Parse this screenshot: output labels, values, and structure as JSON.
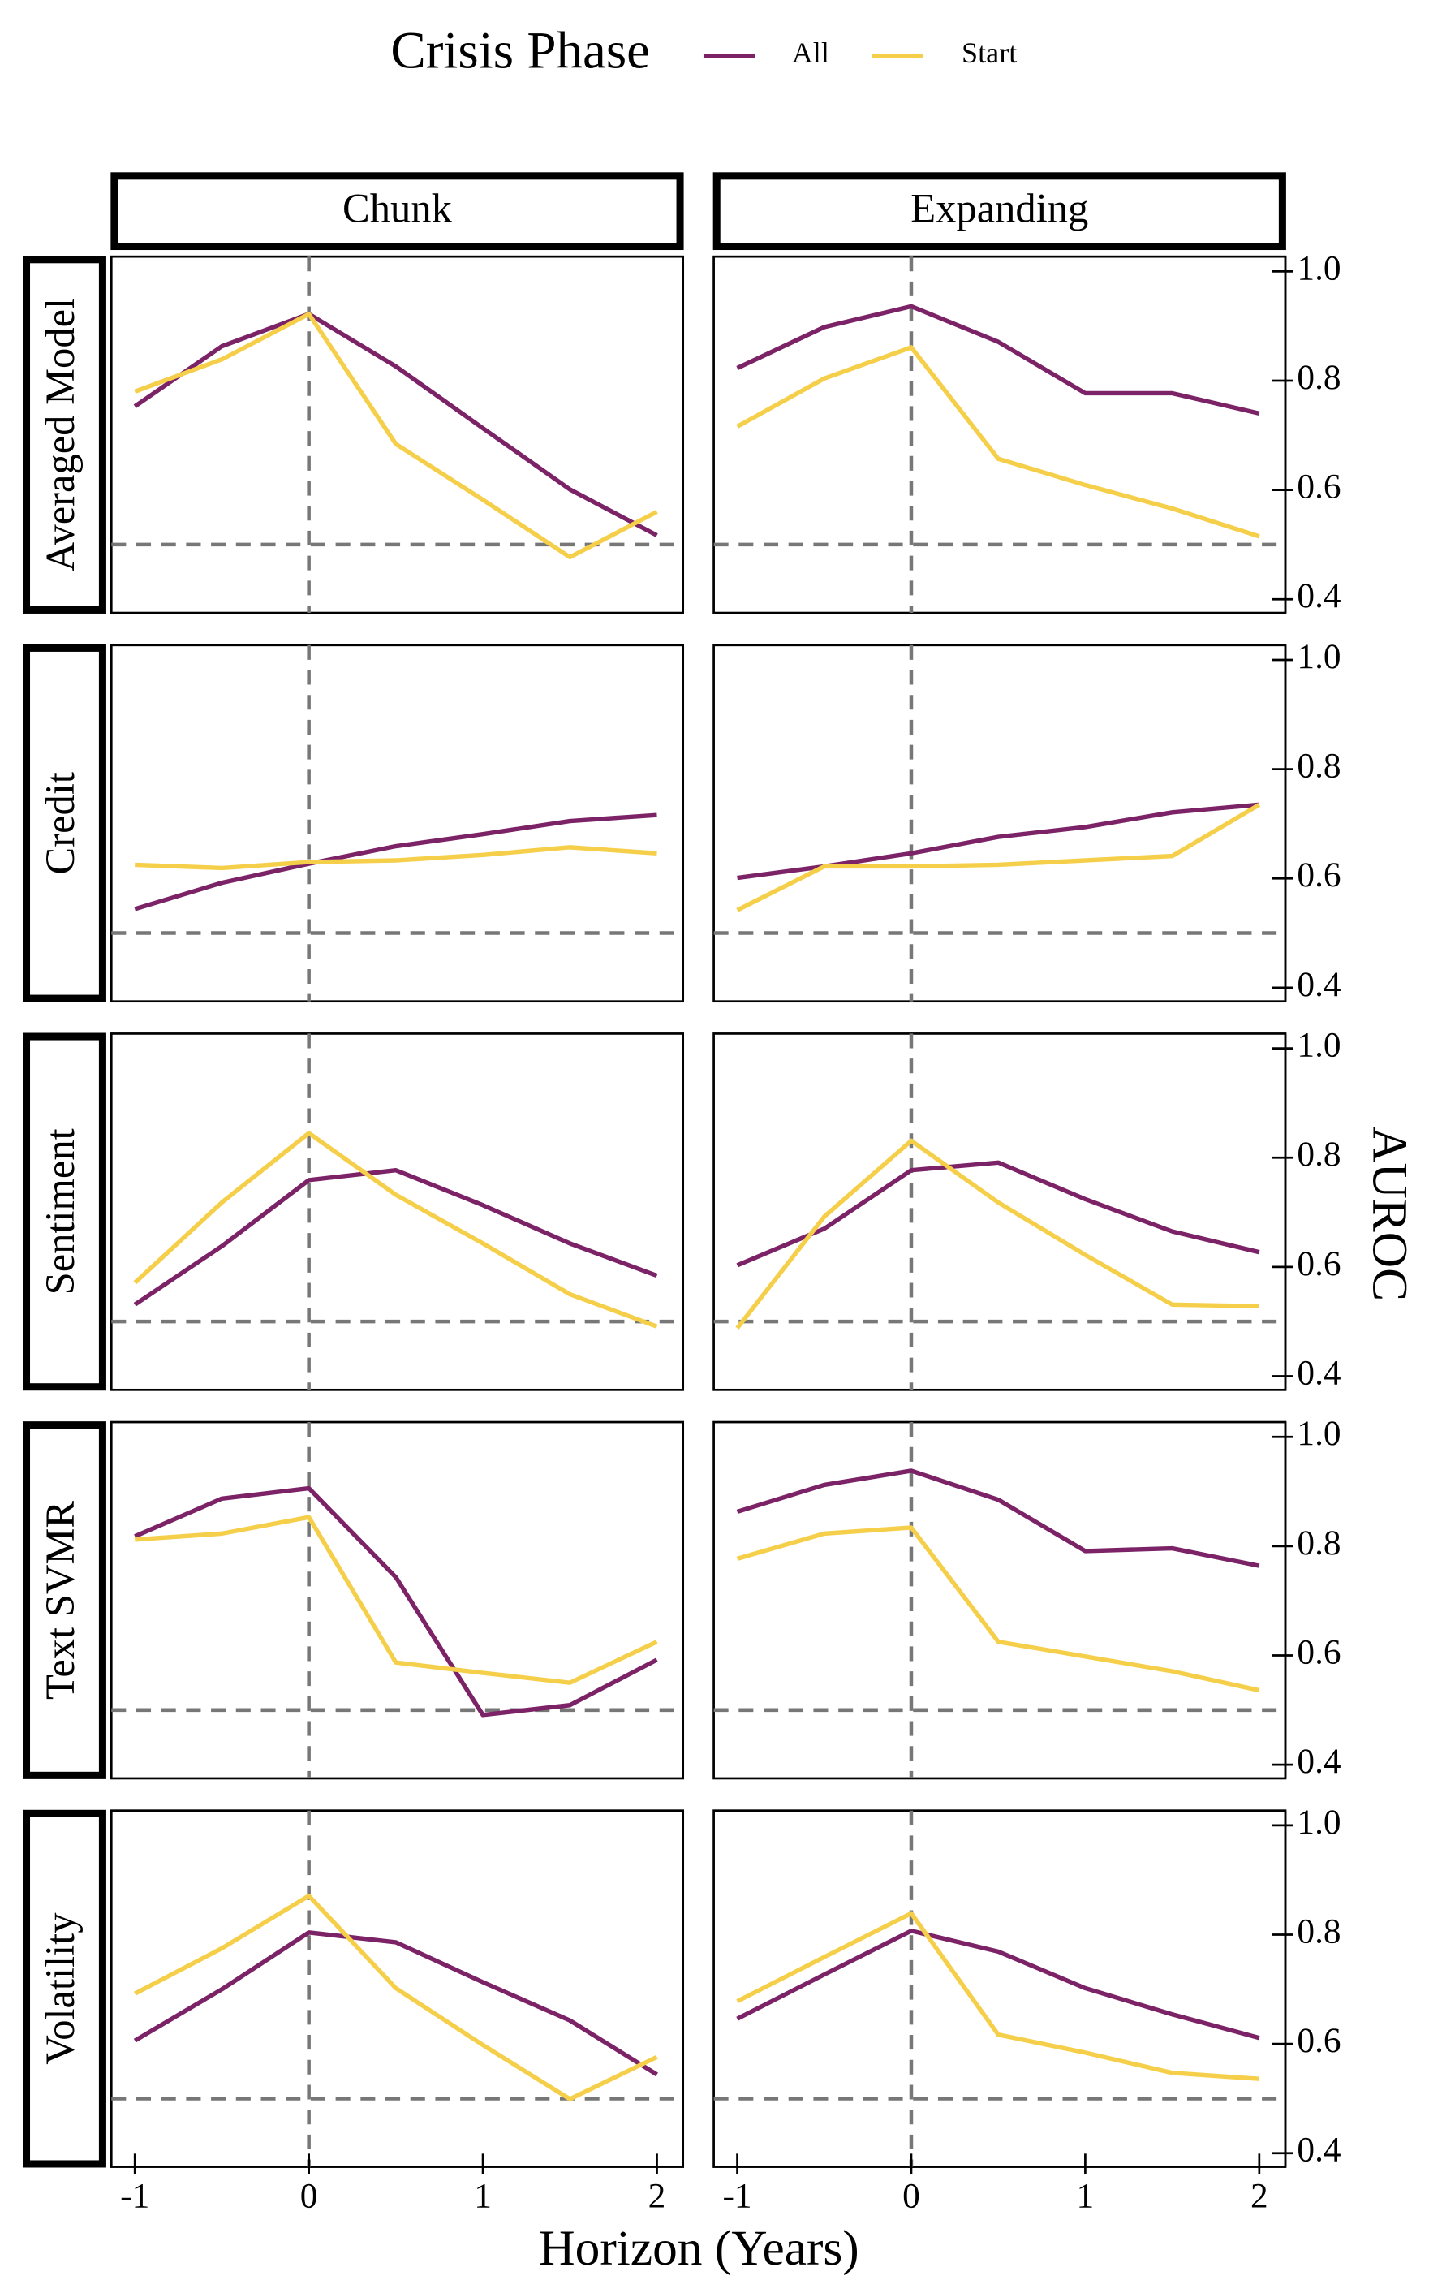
{
  "chart_data": {
    "type": "line",
    "legend_title": "Crisis Phase",
    "x_label": "Horizon (Years)",
    "y_label": "AUROC",
    "legend": [
      {
        "name": "All",
        "color": "#7b2366"
      },
      {
        "name": "Start",
        "color": "#f5cf4a"
      }
    ],
    "columns": [
      "Chunk",
      "Expanding"
    ],
    "rows": [
      "Averaged Model",
      "Credit",
      "Sentiment",
      "Text SVMR",
      "Volatility"
    ],
    "x": [
      -1,
      -0.5,
      0,
      0.5,
      1,
      1.5,
      2
    ],
    "xlim": [
      -1.135,
      2.15
    ],
    "xticks": [
      -1,
      0,
      1,
      2
    ],
    "ylim": [
      0.375,
      1.027
    ],
    "yticks": [
      0.4,
      0.6,
      0.8,
      {
        "value": 1,
        "label": "1.0"
      }
    ],
    "hline": 0.5,
    "vline": 0,
    "panels": [
      [
        [
          [
            0.753,
            0.863,
            0.922,
            0.826,
            0.713,
            0.601,
            0.517
          ],
          [
            0.78,
            0.839,
            0.922,
            0.684,
            0.582,
            0.477,
            0.56
          ]
        ],
        [
          [
            0.823,
            0.898,
            0.936,
            0.871,
            0.777,
            0.777,
            0.74
          ],
          [
            0.716,
            0.804,
            0.861,
            0.657,
            0.609,
            0.566,
            0.515
          ]
        ]
      ],
      [
        [
          [
            0.544,
            0.592,
            0.627,
            0.659,
            0.681,
            0.705,
            0.716
          ],
          [
            0.625,
            0.619,
            0.63,
            0.633,
            0.643,
            0.657,
            0.646
          ]
        ],
        [
          [
            0.601,
            0.622,
            0.646,
            0.676,
            0.694,
            0.721,
            0.735
          ],
          [
            0.542,
            0.622,
            0.622,
            0.625,
            0.633,
            0.641,
            0.735
          ]
        ]
      ],
      [
        [
          [
            0.531,
            0.638,
            0.759,
            0.777,
            0.713,
            0.643,
            0.584
          ],
          [
            0.571,
            0.718,
            0.845,
            0.732,
            0.643,
            0.55,
            0.491
          ]
        ],
        [
          [
            0.603,
            0.67,
            0.777,
            0.791,
            0.724,
            0.665,
            0.627
          ],
          [
            0.488,
            0.692,
            0.831,
            0.718,
            0.622,
            0.531,
            0.528
          ]
        ]
      ],
      [
        [
          [
            0.818,
            0.887,
            0.906,
            0.743,
            0.491,
            0.509,
            0.592
          ],
          [
            0.812,
            0.823,
            0.853,
            0.587,
            0.568,
            0.55,
            0.625
          ]
        ],
        [
          [
            0.863,
            0.912,
            0.938,
            0.885,
            0.791,
            0.796,
            0.764
          ],
          [
            0.777,
            0.823,
            0.834,
            0.625,
            0.598,
            0.571,
            0.536
          ]
        ]
      ],
      [
        [
          [
            0.606,
            0.7,
            0.804,
            0.786,
            0.713,
            0.643,
            0.544
          ],
          [
            0.692,
            0.775,
            0.871,
            0.702,
            0.598,
            0.499,
            0.576
          ]
        ],
        [
          [
            0.646,
            0.727,
            0.807,
            0.769,
            0.702,
            0.654,
            0.611
          ],
          [
            0.678,
            0.759,
            0.839,
            0.617,
            0.584,
            0.547,
            0.536
          ]
        ]
      ]
    ]
  }
}
